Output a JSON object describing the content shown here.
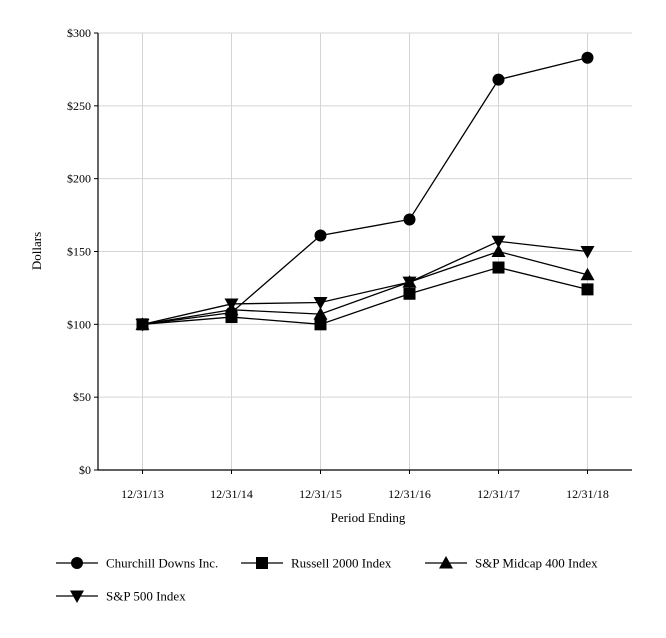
{
  "chart_data": {
    "type": "line",
    "title": "",
    "xlabel": "Period Ending",
    "ylabel": "Dollars",
    "categories": [
      "12/31/13",
      "12/31/14",
      "12/31/15",
      "12/31/16",
      "12/31/17",
      "12/31/18"
    ],
    "ylim": [
      0,
      300
    ],
    "yticks": [
      "$0",
      "$50",
      "$100",
      "$150",
      "$200",
      "$250",
      "$300"
    ],
    "grid": true,
    "legend_position": "bottom",
    "series": [
      {
        "name": "Churchill Downs Inc.",
        "marker": "circle",
        "values": [
          100,
          108,
          161,
          172,
          268,
          283
        ]
      },
      {
        "name": "Russell 2000 Index",
        "marker": "square",
        "values": [
          100,
          105,
          100,
          121,
          139,
          124
        ]
      },
      {
        "name": "S&P Midcap 400 Index",
        "marker": "triangle-up",
        "values": [
          100,
          110,
          107,
          129,
          150,
          134
        ]
      },
      {
        "name": "S&P 500 Index",
        "marker": "triangle-down",
        "values": [
          100,
          114,
          115,
          129,
          157,
          150
        ]
      }
    ]
  }
}
